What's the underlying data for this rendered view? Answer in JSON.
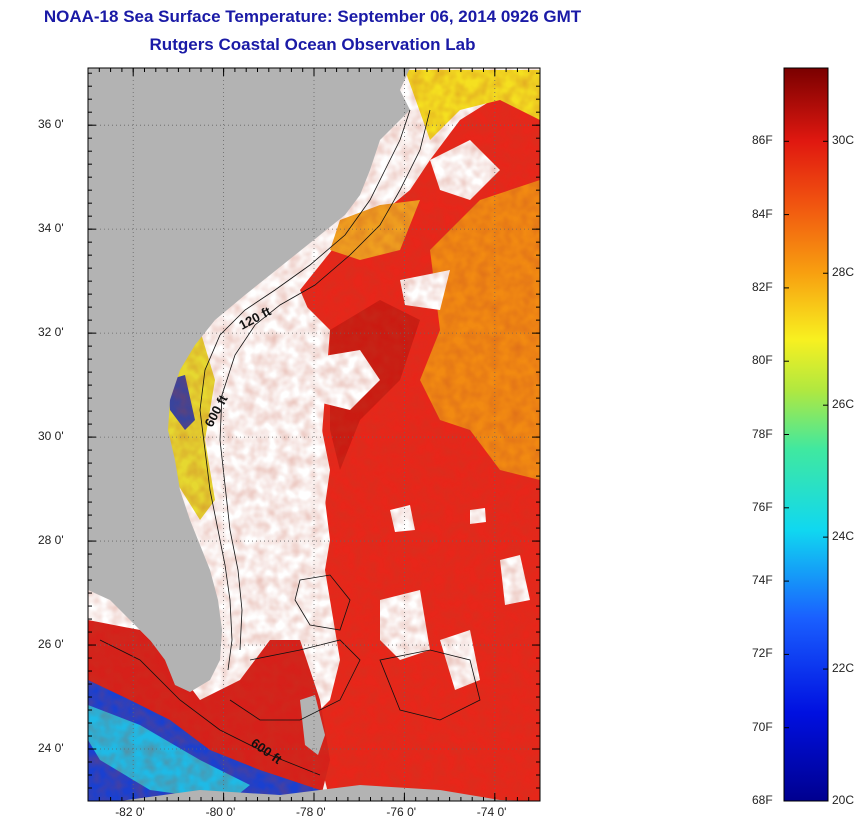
{
  "title": {
    "line1": "NOAA-18 Sea Surface Temperature:  September 06, 2014 0926 GMT",
    "line2": "Rutgers Coastal Ocean Observation Lab"
  },
  "map": {
    "lon_range": [
      -83,
      -73
    ],
    "lat_range": [
      23,
      37.1
    ],
    "lat_ticks": [
      {
        "value": 36,
        "label": "36 0'"
      },
      {
        "value": 34,
        "label": "34 0'"
      },
      {
        "value": 32,
        "label": "32 0'"
      },
      {
        "value": 30,
        "label": "30 0'"
      },
      {
        "value": 28,
        "label": "28 0'"
      },
      {
        "value": 26,
        "label": "26 0'"
      },
      {
        "value": 24,
        "label": "24 0'"
      }
    ],
    "lon_ticks": [
      {
        "value": -82,
        "label": "-82 0'"
      },
      {
        "value": -80,
        "label": "-80 0'"
      },
      {
        "value": -78,
        "label": "-78 0'"
      },
      {
        "value": -76,
        "label": "-76 0'"
      },
      {
        "value": -74,
        "label": "-74 0'"
      }
    ],
    "contour_labels": [
      "120 ft",
      "600 ft",
      "600 ft"
    ],
    "colors": {
      "land": "#b3b3b3",
      "cloud": "#ffffff",
      "warm": "#e8261a",
      "hot": "#c41a12",
      "orange": "#f58a10",
      "yellow": "#f7e21e",
      "cool": "#1030c0",
      "cyan": "#18d6e8"
    }
  },
  "colorbar": {
    "f_labels": [
      "86F",
      "84F",
      "82F",
      "80F",
      "78F",
      "76F",
      "74F",
      "72F",
      "70F",
      "68F"
    ],
    "f_values": [
      86,
      84,
      82,
      80,
      78,
      76,
      74,
      72,
      70,
      68
    ],
    "c_labels": [
      "30C",
      "28C",
      "26C",
      "24C",
      "22C",
      "20C"
    ],
    "c_values": [
      30,
      28,
      26,
      24,
      22,
      20
    ],
    "range_f": [
      68,
      88
    ]
  }
}
